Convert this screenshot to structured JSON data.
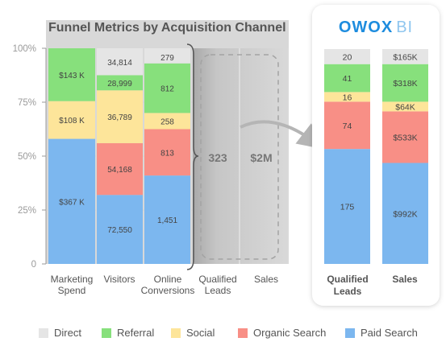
{
  "chart_data": [
    {
      "type": "bar",
      "stacked": true,
      "normalized": true,
      "title": "Funnel Metrics by Acquisition Channel",
      "ylim": [
        0,
        100
      ],
      "yticks": [
        "0",
        "25%",
        "50%",
        "75%",
        "100%"
      ],
      "grid": true,
      "categories": [
        "Marketing Spend",
        "Visitors",
        "Online Conversions",
        "Qualified Leads",
        "Sales"
      ],
      "series": [
        {
          "name": "Paid Search",
          "color": "#7cb7ef",
          "values": [
            58,
            32,
            41,
            null,
            null
          ],
          "labels": [
            "$367 K",
            "72,550",
            "1,451",
            "",
            ""
          ]
        },
        {
          "name": "Organic Search",
          "color": "#f88f86",
          "values": [
            0,
            24,
            21.5,
            null,
            null
          ],
          "labels": [
            "",
            "54,168",
            "813",
            "",
            ""
          ]
        },
        {
          "name": "Social",
          "color": "#fde59a",
          "values": [
            17.5,
            24.5,
            7.5,
            null,
            null
          ],
          "labels": [
            "$108 K",
            "36,789",
            "258",
            "",
            ""
          ]
        },
        {
          "name": "Referral",
          "color": "#87e07c",
          "values": [
            24.5,
            7,
            23,
            null,
            null
          ],
          "labels": [
            "$143 K",
            "28,999",
            "812",
            "",
            ""
          ]
        },
        {
          "name": "Direct",
          "color": "#e5e5e5",
          "values": [
            0,
            12.5,
            7,
            null,
            null
          ],
          "labels": [
            "",
            "34,814",
            "",
            "",
            ""
          ]
        }
      ],
      "overlay_values": [
        "",
        "",
        "",
        "323",
        "$2M"
      ],
      "top_labels": [
        "",
        "",
        "279",
        "",
        ""
      ]
    },
    {
      "type": "bar",
      "stacked": true,
      "normalized": true,
      "brand": {
        "prefix": "OWOX",
        "suffix": "BI"
      },
      "categories": [
        "Qualified Leads",
        "Sales"
      ],
      "series": [
        {
          "name": "Paid Search",
          "color": "#7cb7ef",
          "values": [
            53.5,
            47
          ],
          "labels": [
            "175",
            "$992K"
          ]
        },
        {
          "name": "Organic Search",
          "color": "#f88f86",
          "values": [
            22,
            24
          ],
          "labels": [
            "74",
            "$533K"
          ]
        },
        {
          "name": "Social",
          "color": "#fde59a",
          "values": [
            4.5,
            4.5
          ],
          "labels": [
            "16",
            "$64K"
          ]
        },
        {
          "name": "Referral",
          "color": "#87e07c",
          "values": [
            13,
            17.5
          ],
          "labels": [
            "41",
            "$318K"
          ]
        },
        {
          "name": "Direct",
          "color": "#e5e5e5",
          "values": [
            7,
            7
          ],
          "labels": [
            "20",
            "$165K"
          ]
        }
      ]
    }
  ],
  "legend": [
    "Direct",
    "Referral",
    "Social",
    "Organic Search",
    "Paid Search"
  ],
  "legend_order_colors": [
    "#e5e5e5",
    "#87e07c",
    "#fde59a",
    "#f88f86",
    "#7cb7ef"
  ]
}
